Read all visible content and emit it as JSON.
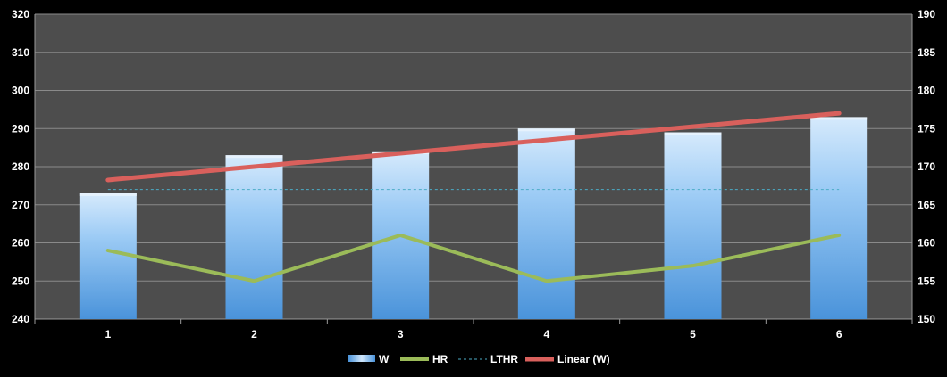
{
  "chart_data": {
    "type": "bar",
    "categories": [
      "1",
      "2",
      "3",
      "4",
      "5",
      "6"
    ],
    "y_left": {
      "min": 240,
      "max": 320,
      "step": 10,
      "ticks": [
        "240",
        "250",
        "260",
        "270",
        "280",
        "290",
        "300",
        "310",
        "320"
      ]
    },
    "y_right": {
      "min": 150,
      "max": 190,
      "step": 5,
      "ticks": [
        "150",
        "155",
        "160",
        "165",
        "170",
        "175",
        "180",
        "185",
        "190"
      ]
    },
    "grid": true,
    "legend_position": "bottom",
    "series": [
      {
        "name": "W",
        "type": "bar",
        "axis": "left",
        "values": [
          273,
          283,
          284,
          290,
          289,
          293
        ],
        "color": "#6fb0ec"
      },
      {
        "name": "HR",
        "type": "line",
        "axis": "right",
        "values": [
          159,
          155,
          161,
          155,
          157,
          161
        ],
        "color": "#9bbb59"
      },
      {
        "name": "LTHR",
        "type": "line",
        "style": "dashed",
        "axis": "right",
        "values": [
          167,
          167,
          167,
          167,
          167,
          167
        ],
        "color": "#4bacc6"
      },
      {
        "name": "Linear (W)",
        "type": "trendline",
        "axis": "left",
        "values": [
          276.5,
          280.0,
          283.5,
          287.0,
          290.5,
          294.0
        ],
        "color": "#d9605c"
      }
    ]
  }
}
